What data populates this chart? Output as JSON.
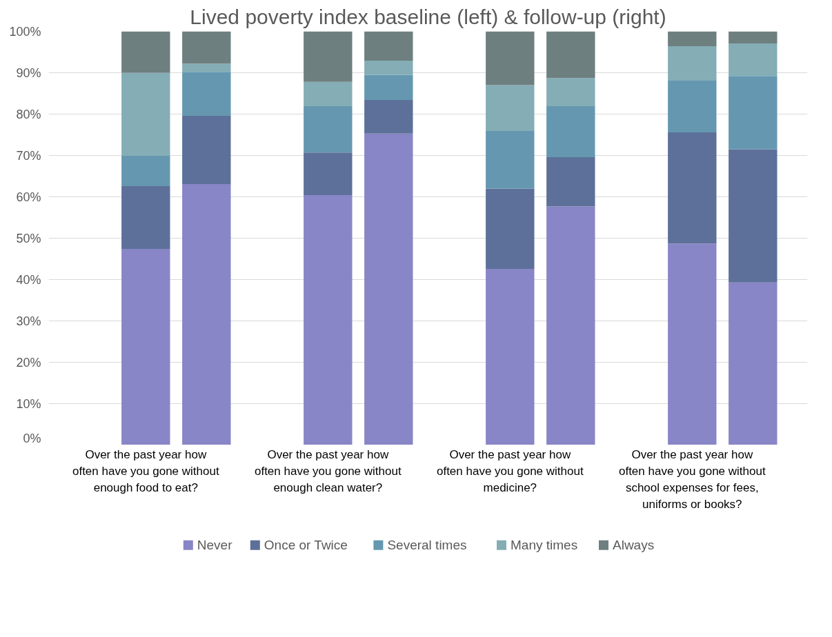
{
  "chart_data": {
    "type": "bar",
    "stacked": true,
    "title": "Lived poverty index baseline (left) & follow-up (right)",
    "categories": [
      "Over the past year how often have you gone without enough food to eat?",
      null,
      "Over the past year how often have you gone without enough clean water?",
      null,
      "Over the past year how often have you gone without medicine?",
      null,
      "Over the past year how often have you gone without school expenses for fees, uniforms or books?",
      null
    ],
    "series": [
      {
        "name": "Never",
        "color": "#8886c6",
        "values": [
          47.4,
          63.1,
          60.4,
          75.3,
          42.6,
          57.7,
          48.7,
          39.3
        ]
      },
      {
        "name": "Once or Twice",
        "color": "#5d7099",
        "values": [
          15.2,
          16.5,
          10.3,
          8.1,
          19.4,
          11.9,
          26.9,
          32.2
        ]
      },
      {
        "name": "Several times",
        "color": "#6598b0",
        "values": [
          7.3,
          10.6,
          11.2,
          6.1,
          13.9,
          12.3,
          12.5,
          17.7
        ]
      },
      {
        "name": "Many times",
        "color": "#84adb6",
        "values": [
          20.1,
          2.0,
          5.9,
          3.4,
          11.1,
          6.8,
          8.3,
          7.9
        ]
      },
      {
        "name": "Always",
        "color": "#6e7f7f",
        "values": [
          10.0,
          7.8,
          12.2,
          7.1,
          13.0,
          11.3,
          3.6,
          2.9
        ]
      }
    ],
    "ylim": [
      0,
      100
    ],
    "yticks": [
      {
        "value": 0,
        "label": "0%"
      },
      {
        "value": 10,
        "label": "10%"
      },
      {
        "value": 20,
        "label": "20%"
      },
      {
        "value": 30,
        "label": "30%"
      },
      {
        "value": 40,
        "label": "40%"
      },
      {
        "value": 50,
        "label": "50%"
      },
      {
        "value": 60,
        "label": "60%"
      },
      {
        "value": 70,
        "label": "70%"
      },
      {
        "value": 80,
        "label": "80%"
      },
      {
        "value": 90,
        "label": "90%"
      },
      {
        "value": 100,
        "label": "100%"
      }
    ],
    "grid": "y",
    "legend": "bottom"
  }
}
